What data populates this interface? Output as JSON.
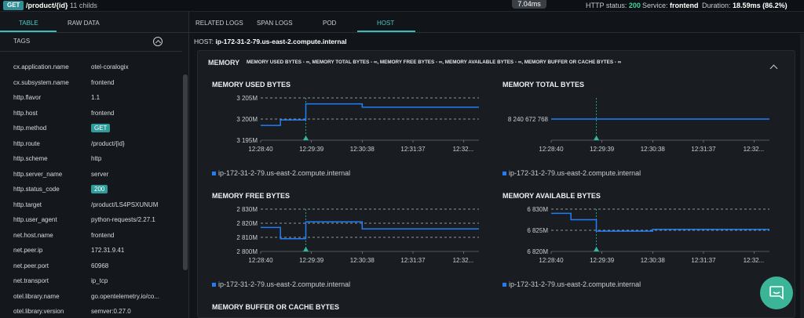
{
  "topbar": {
    "method": "GET",
    "route": "/product/{id}",
    "childs": "11 childs",
    "duration_pill": "7.04ms",
    "http_status_label": "HTTP status:",
    "http_status_value": "200",
    "service_label": "Service:",
    "service_value": "frontend",
    "duration_label": "Duration:",
    "duration_value": "18.59ms (86.2%)"
  },
  "left": {
    "tabs": [
      "TABLE",
      "RAW DATA"
    ],
    "tags_title": "TAGS",
    "tags": [
      {
        "key": "cx.application.name",
        "value": "otel-coralogix"
      },
      {
        "key": "cx.subsystem.name",
        "value": "frontend"
      },
      {
        "key": "http.flavor",
        "value": "1.1"
      },
      {
        "key": "http.host",
        "value": "frontend"
      },
      {
        "key": "http.method",
        "value": "GET",
        "badge": true
      },
      {
        "key": "http.route",
        "value": "/product/{id}"
      },
      {
        "key": "http.scheme",
        "value": "http"
      },
      {
        "key": "http.server_name",
        "value": "server"
      },
      {
        "key": "http.status_code",
        "value": "200",
        "badge": true
      },
      {
        "key": "http.target",
        "value": "/product/LS4PSXUNUM"
      },
      {
        "key": "http.user_agent",
        "value": "python-requests/2.27.1"
      },
      {
        "key": "net.host.name",
        "value": "frontend"
      },
      {
        "key": "net.peer.ip",
        "value": "172.31.9.41"
      },
      {
        "key": "net.peer.port",
        "value": "60968"
      },
      {
        "key": "net.transport",
        "value": "ip_tcp"
      },
      {
        "key": "otel.library.name",
        "value": "go.opentelemetry.io/co..."
      },
      {
        "key": "otel.library.version",
        "value": "semver:0.27.0"
      }
    ]
  },
  "right": {
    "tabs": [
      "RELATED LOGS",
      "SPAN LOGS",
      "POD",
      "HOST"
    ],
    "host_label": "HOST:",
    "host_value": "ip-172-31-2-79.us-east-2.compute.internal",
    "memory_title": "MEMORY",
    "memory_subtitle": "MEMORY USED BYTES - ∞, MEMORY TOTAL BYTES - ∞, MEMORY FREE BYTES - ∞, MEMORY AVAILABLE BYTES - ∞, MEMORY BUFFER OR CACHE BYTES - ∞",
    "buffer_title": "MEMORY BUFFER OR CACHE BYTES"
  },
  "colors": {
    "series": "#1f7ef7",
    "accent": "#3bbdb5",
    "marker": "#2fb9a0",
    "chat": "#3cb497"
  },
  "chart_data": [
    {
      "type": "line",
      "title": "MEMORY USED BYTES",
      "x_ticks": [
        "12:28:40",
        "12:29:39",
        "12:30:38",
        "12:31:37",
        "12:32..."
      ],
      "y_ticks": [
        "3 205M",
        "3 200M",
        "3 195M"
      ],
      "ylim": [
        3195,
        3205
      ],
      "x": [
        0,
        0.39,
        0.39,
        0.89,
        0.89,
        2,
        2,
        4.3
      ],
      "series": [
        {
          "name": "ip-172-31-2-79.us-east-2.compute.internal",
          "values": [
            3198.5,
            3198.5,
            3199.8,
            3199.8,
            3203.6,
            3203.6,
            3202.8,
            3202.8
          ]
        }
      ],
      "marker_x": 0.89
    },
    {
      "type": "line",
      "title": "MEMORY TOTAL BYTES",
      "x_ticks": [
        "12:28:40",
        "12:29:39",
        "12:30:38",
        "12:31:37",
        "12:32..."
      ],
      "y_ticks": [
        "8 240 672 768"
      ],
      "x": [
        0,
        4.3
      ],
      "series": [
        {
          "name": "ip-172-31-2-79.us-east-2.compute.internal",
          "values": [
            8240672768,
            8240672768
          ]
        }
      ],
      "marker_x": 0.89
    },
    {
      "type": "line",
      "title": "MEMORY FREE BYTES",
      "x_ticks": [
        "12:28:40",
        "12:29:39",
        "12:30:38",
        "12:31:37",
        "12:32..."
      ],
      "y_ticks": [
        "2 830M",
        "2 820M",
        "2 810M",
        "2 800M"
      ],
      "ylim": [
        2800,
        2830
      ],
      "x": [
        0,
        0.39,
        0.39,
        0.89,
        0.89,
        2,
        2,
        4.3
      ],
      "series": [
        {
          "name": "ip-172-31-2-79.us-east-2.compute.internal",
          "values": [
            2817,
            2817,
            2809,
            2809,
            2821,
            2821,
            2816,
            2816
          ]
        }
      ],
      "marker_x": 0.89
    },
    {
      "type": "line",
      "title": "MEMORY AVAILABLE BYTES",
      "x_ticks": [
        "12:28:40",
        "12:29:39",
        "12:30:38",
        "12:31:37",
        "12:32..."
      ],
      "y_ticks": [
        "6 830M",
        "6 825M",
        "6 820M"
      ],
      "ylim": [
        6820,
        6830
      ],
      "x": [
        0,
        0.39,
        0.39,
        0.89,
        0.89,
        2,
        2,
        4.3
      ],
      "series": [
        {
          "name": "ip-172-31-2-79.us-east-2.compute.internal",
          "values": [
            6829,
            6829,
            6827.5,
            6827.5,
            6824.8,
            6824.8,
            6825.2,
            6825.2
          ]
        }
      ],
      "marker_x": 0.89
    }
  ]
}
